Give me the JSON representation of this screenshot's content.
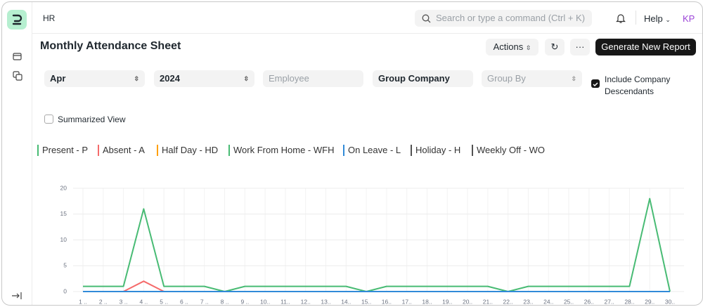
{
  "navbar": {
    "breadcrumb": "HR",
    "search_placeholder": "Search or type a command (Ctrl + K)",
    "help": "Help",
    "avatar": "KP"
  },
  "page": {
    "title": "Monthly Attendance Sheet",
    "actions": "Actions",
    "primary_button": "Generate New Report"
  },
  "filters": {
    "month": "Apr",
    "year": "2024",
    "employee": "Employee",
    "company": "Group Company",
    "group_by": "Group By",
    "include_descendants": "Include Company Descendants",
    "summarized_view": "Summarized View"
  },
  "legend": [
    {
      "label": "Present - P",
      "color": "#48bb74"
    },
    {
      "label": "Absent - A",
      "color": "#f56b6b"
    },
    {
      "label": "Half Day - HD",
      "color": "#ffa00a"
    },
    {
      "label": "Work From Home - WFH",
      "color": "#48bb74"
    },
    {
      "label": "On Leave - L",
      "color": "#318ad8"
    },
    {
      "label": "Holiday - H",
      "color": "#525252"
    },
    {
      "label": "Weekly Off - WO",
      "color": "#525252"
    }
  ],
  "chart_data": {
    "type": "line",
    "categories": [
      "1 ..",
      "2 ..",
      "3 ..",
      "4 ..",
      "5 ..",
      "6 ..",
      "7 ..",
      "8 ..",
      "9 ..",
      "10..",
      "11..",
      "12..",
      "13..",
      "14..",
      "15..",
      "16..",
      "17..",
      "18..",
      "19..",
      "20..",
      "21..",
      "22..",
      "23..",
      "24..",
      "25..",
      "26..",
      "27..",
      "28..",
      "29..",
      "30.."
    ],
    "series": [
      {
        "name": "Present",
        "color": "#48bb74",
        "values": [
          1,
          1,
          1,
          16,
          1,
          1,
          1,
          0,
          1,
          1,
          1,
          1,
          1,
          1,
          0,
          1,
          1,
          1,
          1,
          1,
          1,
          0,
          1,
          1,
          1,
          1,
          1,
          1,
          18,
          0
        ]
      },
      {
        "name": "Absent",
        "color": "#f56b6b",
        "values": [
          0,
          0,
          0,
          2,
          0,
          0,
          0,
          0,
          0,
          0,
          0,
          0,
          0,
          0,
          0,
          0,
          0,
          0,
          0,
          0,
          0,
          0,
          0,
          0,
          0,
          0,
          0,
          0,
          0,
          0
        ]
      },
      {
        "name": "On Leave",
        "color": "#318ad8",
        "values": [
          0,
          0,
          0,
          0,
          0,
          0,
          0,
          0,
          0,
          0,
          0,
          0,
          0,
          0,
          0,
          0,
          0,
          0,
          0,
          0,
          0,
          0,
          0,
          0,
          0,
          0,
          0,
          0,
          0,
          0
        ]
      }
    ],
    "ylim": [
      0,
      20
    ],
    "yticks": [
      0,
      5,
      10,
      15,
      20
    ],
    "grid": true
  }
}
